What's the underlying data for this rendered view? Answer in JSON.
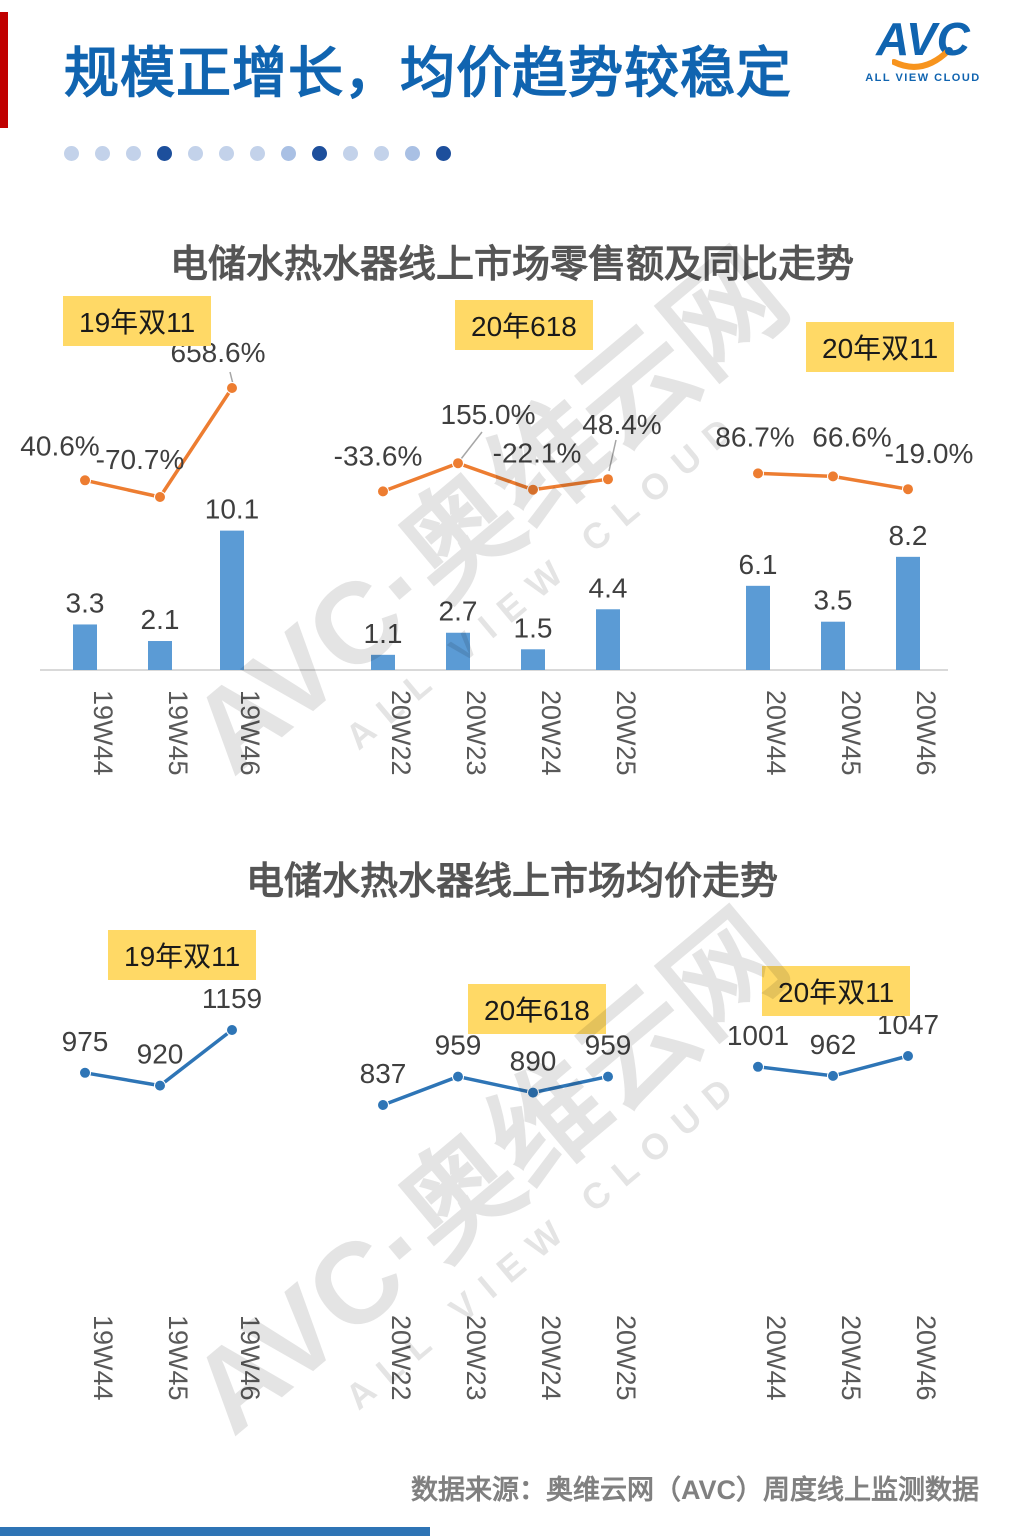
{
  "page": {
    "title": "规模正增长，均价趋势较稳定",
    "footer": "数据来源：奥维云网（AVC）周度线上监测数据"
  },
  "logo": {
    "name": "AVC",
    "tagline": "ALL VIEW CLOUD"
  },
  "watermark": {
    "brand": "AVC·",
    "cn": "奥维云网",
    "en": "ALL VIEW CLOUD"
  },
  "dots": [
    "#c3d2ea",
    "#c3d2ea",
    "#c3d2ea",
    "#1d4f9c",
    "#c3d2ea",
    "#c3d2ea",
    "#c3d2ea",
    "#a9c0e4",
    "#1d4f9c",
    "#c3d2ea",
    "#c3d2ea",
    "#a9c0e4",
    "#1d4f9c"
  ],
  "colors": {
    "title_blue": "#1064b0",
    "bar_blue": "#5B9BD5",
    "line_orange": "#ED7D31",
    "line_blue": "#2E75B6",
    "label_grey": "#595959",
    "highlight_yellow": "#FFD966",
    "accent_red": "#C00000",
    "bottom_bar_blue": "#2e74b5"
  },
  "chart_data": [
    {
      "type": "bar",
      "title": "电储水热水器线上市场零售额及同比走势",
      "categories": [
        "19W44",
        "19W45",
        "19W46",
        "20W22",
        "20W23",
        "20W24",
        "20W25",
        "20W44",
        "20W45",
        "20W46"
      ],
      "annotations": [
        "19年双11",
        "20年618",
        "20年双11"
      ],
      "series": [
        {
          "name": "零售额",
          "type": "bar",
          "values": [
            3.3,
            2.1,
            10.1,
            1.1,
            2.7,
            1.5,
            4.4,
            6.1,
            3.5,
            8.2
          ],
          "labels": [
            "3.3",
            "2.1",
            "10.1",
            "1.1",
            "2.7",
            "1.5",
            "4.4",
            "6.1",
            "3.5",
            "8.2"
          ]
        },
        {
          "name": "同比",
          "type": "line",
          "values": [
            40.6,
            -70.7,
            658.6,
            -33.6,
            155.0,
            -22.1,
            48.4,
            86.7,
            66.6,
            -19.0
          ],
          "labels": [
            "40.6%",
            "-70.7%",
            "658.6%",
            "-33.6%",
            "155.0%",
            "-22.1%",
            "48.4%",
            "86.7%",
            "66.6%",
            "-19.0%"
          ]
        }
      ],
      "layout": {
        "grid": false,
        "legend": "none",
        "line_groups": [
          [
            0,
            3
          ],
          [
            3,
            7
          ],
          [
            7,
            10
          ]
        ]
      }
    },
    {
      "type": "line",
      "title": "电储水热水器线上市场均价走势",
      "categories": [
        "19W44",
        "19W45",
        "19W46",
        "20W22",
        "20W23",
        "20W24",
        "20W25",
        "20W44",
        "20W45",
        "20W46"
      ],
      "annotations": [
        "19年双11",
        "20年618",
        "20年双11"
      ],
      "series": [
        {
          "name": "均价",
          "type": "line",
          "values": [
            975,
            920,
            1159,
            837,
            959,
            890,
            959,
            1001,
            962,
            1047
          ],
          "labels": [
            "975",
            "920",
            "1159",
            "837",
            "959",
            "890",
            "959",
            "1001",
            "962",
            "1047"
          ]
        }
      ],
      "layout": {
        "grid": false,
        "legend": "none",
        "line_groups": [
          [
            0,
            3
          ],
          [
            3,
            7
          ],
          [
            7,
            10
          ]
        ]
      }
    }
  ]
}
